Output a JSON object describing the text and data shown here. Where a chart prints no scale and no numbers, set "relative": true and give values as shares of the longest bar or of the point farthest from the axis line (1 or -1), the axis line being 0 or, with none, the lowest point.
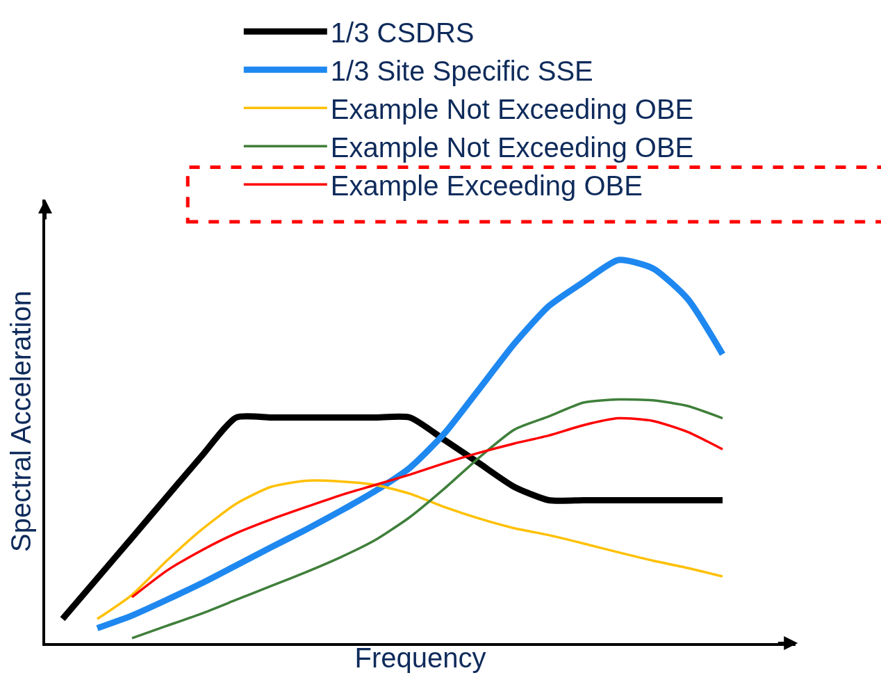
{
  "chart_data": {
    "type": "line",
    "relative": true,
    "xlabel": "Frequency",
    "ylabel": "Spectral Acceleration",
    "legend": "top",
    "marker": "none",
    "categories": [
      null,
      null,
      null,
      null,
      null,
      null,
      null,
      null,
      null,
      null,
      null,
      null,
      null,
      null,
      null,
      null,
      null,
      null,
      null,
      null
    ],
    "series": [
      {
        "name": "1/3 CSDRS",
        "color": "#000000",
        "values": [
          0.063,
          0.169,
          0.275,
          0.382,
          0.488,
          0.589,
          0.589,
          0.589,
          0.589,
          0.589,
          0.589,
          0.53,
          0.469,
          0.408,
          0.373,
          0.373,
          0.373,
          0.373,
          0.373,
          0.373
        ]
      },
      {
        "name": "1/3 Site Specific SSE",
        "color": "#1e88f0",
        "values": [
          null,
          0.039,
          0.072,
          0.113,
          0.156,
          0.203,
          0.25,
          0.296,
          0.345,
          0.397,
          0.458,
          0.548,
          0.664,
          0.781,
          0.88,
          0.943,
          1.0,
          0.978,
          0.898,
          0.754
        ]
      },
      {
        "name": "Example Not Exceeding OBE",
        "color": "#ffc000",
        "values": [
          null,
          0.063,
          0.126,
          0.215,
          0.296,
          0.364,
          0.408,
          0.424,
          0.422,
          0.413,
          0.39,
          0.355,
          0.325,
          0.3,
          0.282,
          0.26,
          0.237,
          0.215,
          0.196,
          0.174
        ]
      },
      {
        "name": "Example Not Exceeding OBE",
        "color": "#3f7f3a",
        "values": [
          null,
          null,
          0.013,
          0.045,
          0.077,
          0.113,
          0.149,
          0.185,
          0.224,
          0.269,
          0.329,
          0.404,
          0.485,
          0.557,
          0.592,
          0.628,
          0.636,
          0.634,
          0.619,
          0.587
        ]
      },
      {
        "name": "Example Exceeding OBE",
        "color": "#ff0000",
        "values": [
          null,
          null,
          0.12,
          0.189,
          0.242,
          0.287,
          0.323,
          0.355,
          0.386,
          0.413,
          0.44,
          0.47,
          0.497,
          0.521,
          0.542,
          0.569,
          0.587,
          0.58,
          0.551,
          0.506
        ]
      }
    ]
  }
}
